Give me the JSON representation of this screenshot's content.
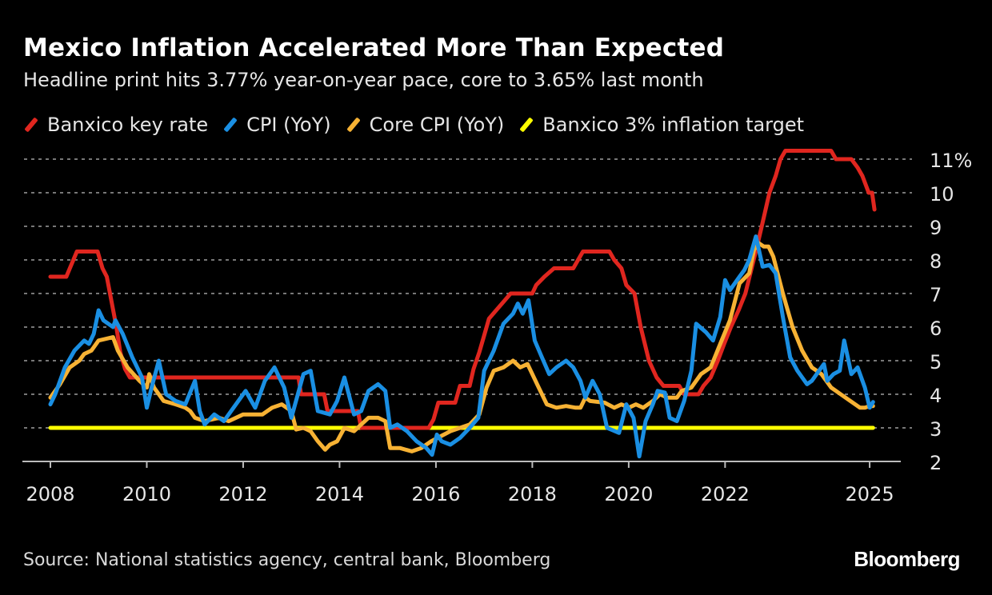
{
  "title": "Mexico Inflation Accelerated More Than Expected",
  "subtitle": "Headline print hits 3.77% year-on-year pace, core to 3.65% last month",
  "source": "Source: National statistics agency, central bank, Bloomberg",
  "logo": "Bloomberg",
  "chart_data": {
    "type": "line",
    "title": "Mexico Inflation Accelerated More Than Expected",
    "xlabel": "",
    "ylabel": "",
    "xlim": [
      2007.6,
      2025.7
    ],
    "ylim": [
      2,
      11
    ],
    "grid": true,
    "legend_position": "top",
    "x_ticks": [
      {
        "value": 2008,
        "label": "2008"
      },
      {
        "value": 2010,
        "label": "2010"
      },
      {
        "value": 2012,
        "label": "2012"
      },
      {
        "value": 2014,
        "label": "2014"
      },
      {
        "value": 2016,
        "label": "2016"
      },
      {
        "value": 2018,
        "label": "2018"
      },
      {
        "value": 2020,
        "label": "2020"
      },
      {
        "value": 2022,
        "label": "2022"
      },
      {
        "value": 2025,
        "label": "2025"
      }
    ],
    "y_ticks": [
      {
        "value": 11,
        "label": "11%"
      },
      {
        "value": 10,
        "label": "10"
      },
      {
        "value": 9,
        "label": "9"
      },
      {
        "value": 8,
        "label": "8"
      },
      {
        "value": 7,
        "label": "7"
      },
      {
        "value": 6,
        "label": "6"
      },
      {
        "value": 5,
        "label": "5"
      },
      {
        "value": 4,
        "label": "4"
      },
      {
        "value": 3,
        "label": "3"
      },
      {
        "value": 2,
        "label": "2"
      }
    ],
    "series": [
      {
        "name": "Banxico key rate",
        "color": "#e0261f",
        "points": [
          [
            2008.0,
            7.5
          ],
          [
            2008.33,
            7.5
          ],
          [
            2008.55,
            8.25
          ],
          [
            2008.98,
            8.25
          ],
          [
            2009.08,
            7.75
          ],
          [
            2009.17,
            7.5
          ],
          [
            2009.27,
            6.75
          ],
          [
            2009.37,
            6.0
          ],
          [
            2009.45,
            5.25
          ],
          [
            2009.55,
            4.75
          ],
          [
            2009.65,
            4.5
          ],
          [
            2013.15,
            4.5
          ],
          [
            2013.2,
            4.0
          ],
          [
            2013.68,
            4.0
          ],
          [
            2013.75,
            3.5
          ],
          [
            2014.38,
            3.5
          ],
          [
            2014.45,
            3.0
          ],
          [
            2015.85,
            3.0
          ],
          [
            2015.95,
            3.25
          ],
          [
            2016.05,
            3.75
          ],
          [
            2016.4,
            3.75
          ],
          [
            2016.5,
            4.25
          ],
          [
            2016.7,
            4.25
          ],
          [
            2016.78,
            4.75
          ],
          [
            2016.9,
            5.25
          ],
          [
            2017.0,
            5.75
          ],
          [
            2017.1,
            6.25
          ],
          [
            2017.25,
            6.5
          ],
          [
            2017.4,
            6.75
          ],
          [
            2017.55,
            7.0
          ],
          [
            2018.0,
            7.0
          ],
          [
            2018.08,
            7.25
          ],
          [
            2018.25,
            7.5
          ],
          [
            2018.45,
            7.75
          ],
          [
            2018.85,
            7.75
          ],
          [
            2018.95,
            8.0
          ],
          [
            2019.05,
            8.25
          ],
          [
            2019.6,
            8.25
          ],
          [
            2019.7,
            8.0
          ],
          [
            2019.85,
            7.75
          ],
          [
            2019.95,
            7.25
          ],
          [
            2020.12,
            7.0
          ],
          [
            2020.25,
            6.0
          ],
          [
            2020.42,
            5.0
          ],
          [
            2020.58,
            4.5
          ],
          [
            2020.72,
            4.25
          ],
          [
            2021.05,
            4.25
          ],
          [
            2021.15,
            4.0
          ],
          [
            2021.45,
            4.0
          ],
          [
            2021.55,
            4.25
          ],
          [
            2021.7,
            4.5
          ],
          [
            2021.85,
            5.0
          ],
          [
            2021.98,
            5.5
          ],
          [
            2022.12,
            6.0
          ],
          [
            2022.28,
            6.5
          ],
          [
            2022.42,
            7.0
          ],
          [
            2022.55,
            7.75
          ],
          [
            2022.68,
            8.5
          ],
          [
            2022.8,
            9.25
          ],
          [
            2022.92,
            10.0
          ],
          [
            2023.05,
            10.5
          ],
          [
            2023.15,
            11.0
          ],
          [
            2023.25,
            11.25
          ],
          [
            2024.2,
            11.25
          ],
          [
            2024.3,
            11.0
          ],
          [
            2024.62,
            11.0
          ],
          [
            2024.75,
            10.75
          ],
          [
            2024.85,
            10.5
          ],
          [
            2024.98,
            10.0
          ],
          [
            2025.05,
            10.0
          ],
          [
            2025.1,
            9.5
          ]
        ]
      },
      {
        "name": "CPI (YoY)",
        "color": "#1a8fe3",
        "points": [
          [
            2008.0,
            3.7
          ],
          [
            2008.1,
            4.0
          ],
          [
            2008.3,
            4.8
          ],
          [
            2008.5,
            5.3
          ],
          [
            2008.7,
            5.6
          ],
          [
            2008.8,
            5.5
          ],
          [
            2008.9,
            5.8
          ],
          [
            2009.0,
            6.5
          ],
          [
            2009.1,
            6.2
          ],
          [
            2009.3,
            6.0
          ],
          [
            2009.35,
            6.2
          ],
          [
            2009.5,
            5.8
          ],
          [
            2009.7,
            5.1
          ],
          [
            2009.9,
            4.5
          ],
          [
            2010.0,
            3.6
          ],
          [
            2010.1,
            4.2
          ],
          [
            2010.25,
            5.0
          ],
          [
            2010.4,
            4.0
          ],
          [
            2010.6,
            3.8
          ],
          [
            2010.8,
            3.7
          ],
          [
            2011.0,
            4.4
          ],
          [
            2011.1,
            3.5
          ],
          [
            2011.2,
            3.1
          ],
          [
            2011.4,
            3.4
          ],
          [
            2011.6,
            3.2
          ],
          [
            2011.9,
            3.8
          ],
          [
            2012.05,
            4.1
          ],
          [
            2012.25,
            3.6
          ],
          [
            2012.45,
            4.4
          ],
          [
            2012.65,
            4.8
          ],
          [
            2012.85,
            4.2
          ],
          [
            2013.0,
            3.3
          ],
          [
            2013.25,
            4.6
          ],
          [
            2013.4,
            4.7
          ],
          [
            2013.55,
            3.5
          ],
          [
            2013.8,
            3.4
          ],
          [
            2013.95,
            3.8
          ],
          [
            2014.1,
            4.5
          ],
          [
            2014.3,
            3.4
          ],
          [
            2014.45,
            3.5
          ],
          [
            2014.6,
            4.1
          ],
          [
            2014.8,
            4.3
          ],
          [
            2014.95,
            4.1
          ],
          [
            2015.05,
            3.0
          ],
          [
            2015.2,
            3.1
          ],
          [
            2015.4,
            2.9
          ],
          [
            2015.6,
            2.6
          ],
          [
            2015.8,
            2.4
          ],
          [
            2015.92,
            2.2
          ],
          [
            2016.02,
            2.8
          ],
          [
            2016.12,
            2.6
          ],
          [
            2016.3,
            2.5
          ],
          [
            2016.5,
            2.7
          ],
          [
            2016.7,
            3.0
          ],
          [
            2016.88,
            3.3
          ],
          [
            2017.0,
            4.7
          ],
          [
            2017.2,
            5.3
          ],
          [
            2017.4,
            6.1
          ],
          [
            2017.6,
            6.4
          ],
          [
            2017.7,
            6.7
          ],
          [
            2017.8,
            6.4
          ],
          [
            2017.92,
            6.8
          ],
          [
            2018.05,
            5.6
          ],
          [
            2018.2,
            5.1
          ],
          [
            2018.35,
            4.6
          ],
          [
            2018.5,
            4.8
          ],
          [
            2018.7,
            5.0
          ],
          [
            2018.85,
            4.8
          ],
          [
            2019.0,
            4.4
          ],
          [
            2019.1,
            3.9
          ],
          [
            2019.25,
            4.4
          ],
          [
            2019.4,
            4.0
          ],
          [
            2019.55,
            3.0
          ],
          [
            2019.8,
            2.85
          ],
          [
            2019.95,
            3.7
          ],
          [
            2020.1,
            3.3
          ],
          [
            2020.22,
            2.15
          ],
          [
            2020.35,
            3.2
          ],
          [
            2020.5,
            3.7
          ],
          [
            2020.6,
            4.1
          ],
          [
            2020.75,
            4.05
          ],
          [
            2020.85,
            3.3
          ],
          [
            2021.0,
            3.2
          ],
          [
            2021.15,
            3.8
          ],
          [
            2021.3,
            4.7
          ],
          [
            2021.4,
            6.1
          ],
          [
            2021.6,
            5.85
          ],
          [
            2021.75,
            5.6
          ],
          [
            2021.9,
            6.3
          ],
          [
            2022.0,
            7.4
          ],
          [
            2022.1,
            7.1
          ],
          [
            2022.3,
            7.5
          ],
          [
            2022.4,
            7.7
          ],
          [
            2022.5,
            8.0
          ],
          [
            2022.64,
            8.7
          ],
          [
            2022.78,
            7.8
          ],
          [
            2022.92,
            7.85
          ],
          [
            2023.05,
            7.6
          ],
          [
            2023.2,
            6.3
          ],
          [
            2023.35,
            5.1
          ],
          [
            2023.5,
            4.7
          ],
          [
            2023.7,
            4.3
          ],
          [
            2023.8,
            4.4
          ],
          [
            2023.95,
            4.7
          ],
          [
            2024.05,
            4.9
          ],
          [
            2024.12,
            4.4
          ],
          [
            2024.25,
            4.6
          ],
          [
            2024.38,
            4.7
          ],
          [
            2024.47,
            5.6
          ],
          [
            2024.62,
            4.6
          ],
          [
            2024.75,
            4.8
          ],
          [
            2024.9,
            4.2
          ],
          [
            2025.0,
            3.6
          ],
          [
            2025.07,
            3.77
          ]
        ]
      },
      {
        "name": "Core CPI (YoY)",
        "color": "#f7b234",
        "points": [
          [
            2008.0,
            3.9
          ],
          [
            2008.2,
            4.3
          ],
          [
            2008.4,
            4.8
          ],
          [
            2008.6,
            5.0
          ],
          [
            2008.7,
            5.2
          ],
          [
            2008.85,
            5.3
          ],
          [
            2009.0,
            5.6
          ],
          [
            2009.3,
            5.7
          ],
          [
            2009.4,
            5.3
          ],
          [
            2009.6,
            4.8
          ],
          [
            2009.85,
            4.4
          ],
          [
            2010.0,
            4.2
          ],
          [
            2010.05,
            4.6
          ],
          [
            2010.15,
            4.2
          ],
          [
            2010.35,
            3.8
          ],
          [
            2010.6,
            3.7
          ],
          [
            2010.8,
            3.6
          ],
          [
            2010.9,
            3.5
          ],
          [
            2011.0,
            3.3
          ],
          [
            2011.2,
            3.2
          ],
          [
            2011.5,
            3.3
          ],
          [
            2011.7,
            3.2
          ],
          [
            2012.0,
            3.4
          ],
          [
            2012.2,
            3.4
          ],
          [
            2012.4,
            3.4
          ],
          [
            2012.6,
            3.6
          ],
          [
            2012.8,
            3.7
          ],
          [
            2013.0,
            3.5
          ],
          [
            2013.1,
            2.95
          ],
          [
            2013.25,
            3.0
          ],
          [
            2013.4,
            2.9
          ],
          [
            2013.55,
            2.6
          ],
          [
            2013.7,
            2.35
          ],
          [
            2013.8,
            2.5
          ],
          [
            2013.95,
            2.6
          ],
          [
            2014.1,
            3.0
          ],
          [
            2014.3,
            2.9
          ],
          [
            2014.45,
            3.1
          ],
          [
            2014.6,
            3.3
          ],
          [
            2014.8,
            3.3
          ],
          [
            2014.95,
            3.2
          ],
          [
            2015.05,
            2.4
          ],
          [
            2015.25,
            2.4
          ],
          [
            2015.5,
            2.3
          ],
          [
            2015.7,
            2.4
          ],
          [
            2015.9,
            2.6
          ],
          [
            2016.1,
            2.75
          ],
          [
            2016.3,
            2.9
          ],
          [
            2016.5,
            3.0
          ],
          [
            2016.7,
            3.1
          ],
          [
            2016.9,
            3.4
          ],
          [
            2017.05,
            4.2
          ],
          [
            2017.2,
            4.7
          ],
          [
            2017.4,
            4.8
          ],
          [
            2017.6,
            5.0
          ],
          [
            2017.75,
            4.8
          ],
          [
            2017.9,
            4.9
          ],
          [
            2018.1,
            4.3
          ],
          [
            2018.3,
            3.7
          ],
          [
            2018.5,
            3.6
          ],
          [
            2018.7,
            3.65
          ],
          [
            2018.9,
            3.6
          ],
          [
            2019.0,
            3.6
          ],
          [
            2019.1,
            3.9
          ],
          [
            2019.2,
            3.8
          ],
          [
            2019.5,
            3.75
          ],
          [
            2019.7,
            3.6
          ],
          [
            2019.85,
            3.7
          ],
          [
            2020.0,
            3.6
          ],
          [
            2020.15,
            3.7
          ],
          [
            2020.3,
            3.6
          ],
          [
            2020.5,
            3.8
          ],
          [
            2020.65,
            4.0
          ],
          [
            2020.8,
            3.9
          ],
          [
            2021.0,
            3.9
          ],
          [
            2021.1,
            4.1
          ],
          [
            2021.3,
            4.2
          ],
          [
            2021.5,
            4.6
          ],
          [
            2021.7,
            4.8
          ],
          [
            2021.9,
            5.5
          ],
          [
            2022.1,
            6.2
          ],
          [
            2022.3,
            7.3
          ],
          [
            2022.5,
            7.6
          ],
          [
            2022.6,
            8.3
          ],
          [
            2022.7,
            8.5
          ],
          [
            2022.8,
            8.4
          ],
          [
            2022.9,
            8.4
          ],
          [
            2023.0,
            8.1
          ],
          [
            2023.2,
            7.0
          ],
          [
            2023.4,
            6.0
          ],
          [
            2023.6,
            5.3
          ],
          [
            2023.8,
            4.8
          ],
          [
            2024.0,
            4.6
          ],
          [
            2024.2,
            4.2
          ],
          [
            2024.4,
            4.0
          ],
          [
            2024.6,
            3.8
          ],
          [
            2024.8,
            3.6
          ],
          [
            2024.9,
            3.6
          ],
          [
            2025.0,
            3.65
          ],
          [
            2025.07,
            3.65
          ]
        ]
      },
      {
        "name": "Banxico 3% inflation target",
        "color": "#ffff00",
        "points": [
          [
            2008.0,
            3
          ],
          [
            2025.07,
            3
          ]
        ]
      }
    ]
  }
}
